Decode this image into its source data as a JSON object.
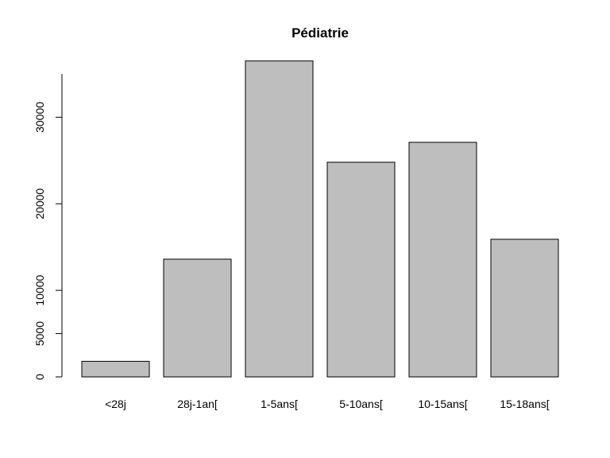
{
  "chart_data": {
    "type": "bar",
    "title": "Pédiatrie",
    "xlabel": "",
    "ylabel": "",
    "categories": [
      "<28j",
      "28j-1an[",
      "1-5ans[",
      "5-10ans[",
      "10-15ans[",
      "15-18ans["
    ],
    "values": [
      1800,
      13600,
      36500,
      24800,
      27100,
      15900
    ],
    "ylim": [
      0,
      35000
    ],
    "yticks": [
      0,
      5000,
      10000,
      20000,
      30000
    ],
    "grid": false,
    "bar_color": "#bebebe"
  }
}
